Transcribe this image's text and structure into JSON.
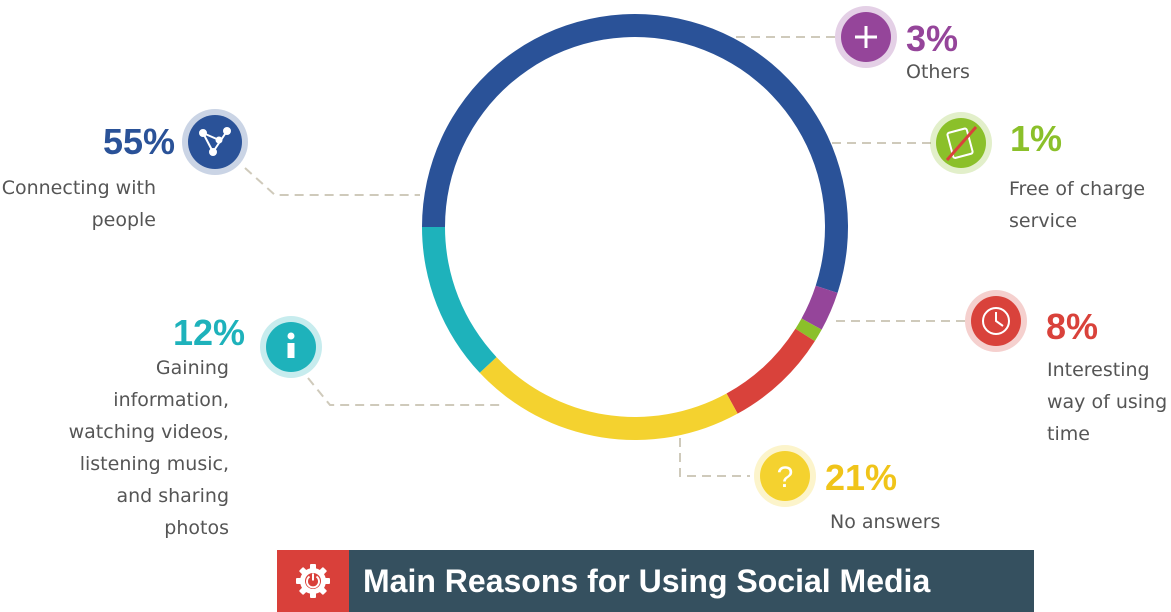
{
  "chart_data": {
    "type": "donut",
    "title": "Main Reasons for Using Social Media",
    "slices": [
      {
        "label": "Connecting with people",
        "lines": [
          "Connecting with",
          "people"
        ],
        "value": 55,
        "display": "55%",
        "color": "#2a5298",
        "icon": "share-network-icon"
      },
      {
        "label": "Others",
        "lines": [
          "Others"
        ],
        "value": 3,
        "display": "3%",
        "color": "#95459a",
        "icon": "plus-icon"
      },
      {
        "label": "Free of charge service",
        "lines": [
          "Free of charge",
          "service"
        ],
        "value": 1,
        "display": "1%",
        "color": "#8bc02a",
        "icon": "no-money-icon"
      },
      {
        "label": "Interesting way of using time",
        "lines": [
          "Interesting",
          "way of using",
          "time"
        ],
        "value": 8,
        "display": "8%",
        "color": "#d9423b",
        "icon": "clock-icon"
      },
      {
        "label": "No answers",
        "lines": [
          "No answers"
        ],
        "value": 21,
        "display": "21%",
        "color": "#f4d22f",
        "icon": "question-icon"
      },
      {
        "label": "Gaining information, watching videos, listening music, and sharing photos",
        "lines": [
          "Gaining",
          "information,",
          "watching videos,",
          "listening music,",
          "and sharing",
          "photos"
        ],
        "value": 12,
        "display": "12%",
        "color": "#1eb2bb",
        "icon": "info-icon"
      }
    ]
  },
  "title_bar": {
    "text": "Main Reasons for Using Social Media",
    "icon": "power-gear-icon",
    "background": "#35505f",
    "icon_background": "#d9403a"
  }
}
